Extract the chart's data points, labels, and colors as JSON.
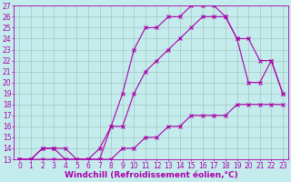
{
  "xlabel": "Windchill (Refroidissement éolien,°C)",
  "xlim": [
    -0.5,
    23.5
  ],
  "ylim": [
    13,
    27
  ],
  "xticks": [
    0,
    1,
    2,
    3,
    4,
    5,
    6,
    7,
    8,
    9,
    10,
    11,
    12,
    13,
    14,
    15,
    16,
    17,
    18,
    19,
    20,
    21,
    22,
    23
  ],
  "yticks": [
    13,
    14,
    15,
    16,
    17,
    18,
    19,
    20,
    21,
    22,
    23,
    24,
    25,
    26,
    27
  ],
  "background_color": "#c5ecec",
  "grid_color": "#9bbaba",
  "line_color": "#aa00aa",
  "line1_x": [
    0,
    1,
    2,
    3,
    4,
    5,
    6,
    7,
    8,
    9,
    10,
    11,
    12,
    13,
    14,
    15,
    16,
    17,
    18,
    19,
    20,
    21,
    22,
    23
  ],
  "line1_y": [
    13,
    13,
    13,
    13,
    13,
    13,
    13,
    13,
    13,
    14,
    14,
    15,
    15,
    16,
    16,
    17,
    17,
    17,
    17,
    18,
    18,
    18,
    18,
    18
  ],
  "line2_x": [
    0,
    1,
    2,
    3,
    4,
    5,
    6,
    7,
    8,
    9,
    10,
    11,
    12,
    13,
    14,
    15,
    16,
    17,
    18,
    19,
    20,
    21,
    22,
    23
  ],
  "line2_y": [
    13,
    13,
    14,
    14,
    14,
    13,
    13,
    13,
    16,
    19,
    23,
    25,
    25,
    26,
    26,
    27,
    27,
    27,
    26,
    24,
    20,
    20,
    22,
    19
  ],
  "line3_x": [
    0,
    1,
    2,
    3,
    4,
    5,
    6,
    7,
    8,
    9,
    10,
    11,
    12,
    13,
    14,
    15,
    16,
    17,
    18,
    19,
    20,
    21,
    22,
    23
  ],
  "line3_y": [
    13,
    13,
    14,
    14,
    13,
    13,
    13,
    14,
    16,
    16,
    19,
    21,
    22,
    23,
    24,
    25,
    26,
    26,
    26,
    24,
    24,
    22,
    22,
    19
  ],
  "marker": "x",
  "linewidth": 0.8,
  "markersize": 3,
  "markeredgewidth": 0.8,
  "fontsize_ticks": 5.5,
  "fontsize_label": 6.5
}
